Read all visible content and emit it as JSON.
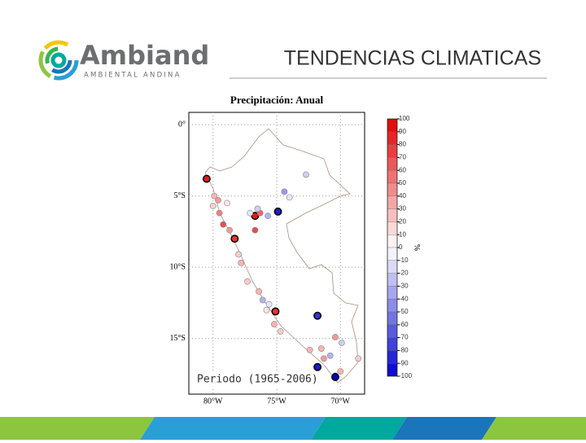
{
  "header": {
    "logo_name": "Ambiand",
    "logo_tagline": "AMBIENTAL ANDINA",
    "title": "TENDENCIAS CLIMATICAS"
  },
  "chart_data": {
    "type": "map-scatter",
    "title": "Precipitación: Anual",
    "annotation": "Periodo (1965-2006)",
    "xlim": [
      -81.9,
      -68.1
    ],
    "ylim": [
      -18.9,
      0.86
    ],
    "xticks": [
      {
        "value": -80,
        "label": "80°W"
      },
      {
        "value": -75,
        "label": "75°W"
      },
      {
        "value": -70,
        "label": "70°W"
      }
    ],
    "yticks": [
      {
        "value": 0,
        "label": "0°"
      },
      {
        "value": -5,
        "label": "5°S"
      },
      {
        "value": -10,
        "label": "10°S"
      },
      {
        "value": -15,
        "label": "15°S"
      }
    ],
    "grid": true,
    "colorbar": {
      "label": "%",
      "clim": [
        -100,
        100
      ],
      "ticks": [
        100,
        90,
        80,
        70,
        60,
        50,
        40,
        30,
        20,
        10,
        0,
        -10,
        -20,
        -30,
        -40,
        -50,
        -60,
        -70,
        -80,
        -90,
        -100
      ],
      "positive_color": "#e00000",
      "negative_color": "#0000d0"
    },
    "stations": {
      "lon": [
        -80.5,
        -79.9,
        -79.6,
        -80.0,
        -79.5,
        -79.2,
        -78.3,
        -78.7,
        -76.7,
        -76.3,
        -76.5,
        -77.1,
        -75.7,
        -74.9,
        -76.7,
        -72.7,
        -74.4,
        -74.0,
        -77.8,
        -77.3,
        -76.4,
        -76.1,
        -75.6,
        -75.1,
        -75.8,
        -75.2,
        -74.7,
        -71.8,
        -70.4,
        -69.9,
        -72.4,
        -71.5,
        -71.3,
        -70.8,
        -71.8,
        -70.4,
        -70.4,
        -70.0,
        -68.6,
        -78.0,
        -78.9
      ],
      "lat": [
        -3.8,
        -5.0,
        -5.3,
        -5.7,
        -6.2,
        -7.0,
        -8.0,
        -7.4,
        -6.4,
        -6.2,
        -5.9,
        -6.2,
        -6.4,
        -6.1,
        -7.4,
        -3.5,
        -4.7,
        -5.1,
        -9.7,
        -11.0,
        -11.7,
        -12.3,
        -12.6,
        -13.1,
        -13.0,
        -14.0,
        -14.5,
        -13.4,
        -14.9,
        -15.3,
        -15.8,
        -15.7,
        -16.4,
        -16.2,
        -17.0,
        -17.6,
        -17.7,
        -17.3,
        -16.4,
        -9.1,
        -5.5
      ],
      "values": [
        90,
        30,
        40,
        20,
        50,
        70,
        80,
        40,
        90,
        60,
        -20,
        -10,
        -30,
        -90,
        70,
        -20,
        -40,
        -10,
        30,
        20,
        30,
        -30,
        -10,
        80,
        10,
        30,
        20,
        -80,
        40,
        -20,
        30,
        30,
        40,
        -30,
        -90,
        -30,
        -100,
        30,
        20,
        20,
        10
      ]
    }
  }
}
